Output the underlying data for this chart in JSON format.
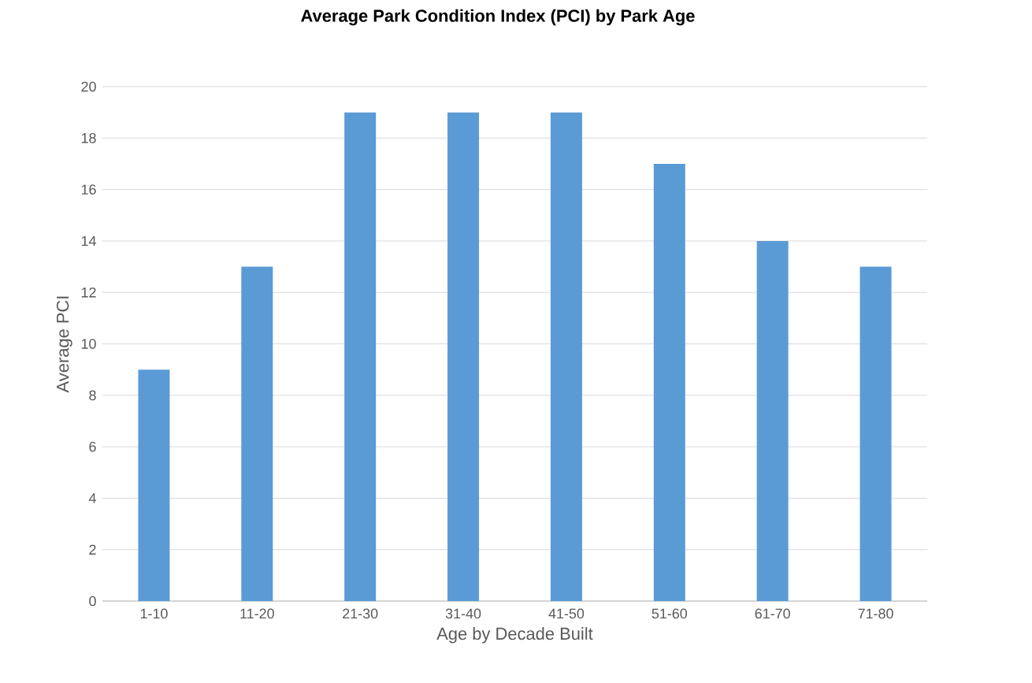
{
  "chart_data": {
    "type": "bar",
    "title": "Average Park Condition Index (PCI) by Park Age",
    "xlabel": "Age by Decade Built",
    "ylabel": "Average PCI",
    "categories": [
      "1-10",
      "11-20",
      "21-30",
      "31-40",
      "41-50",
      "51-60",
      "61-70",
      "71-80"
    ],
    "values": [
      9,
      13,
      19,
      19,
      19,
      17,
      14,
      13
    ],
    "color": "#5b9bd5",
    "ylim": [
      0,
      20
    ],
    "yticks": [
      0,
      2,
      4,
      6,
      8,
      10,
      12,
      14,
      16,
      18,
      20
    ],
    "grid": "y"
  }
}
